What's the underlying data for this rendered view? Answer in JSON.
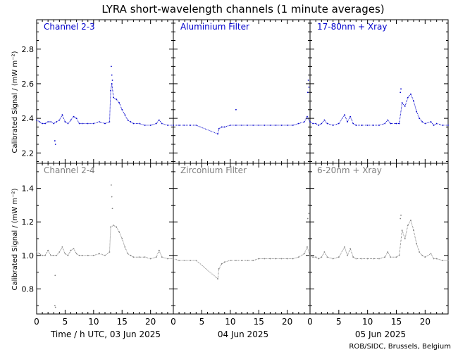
{
  "title": "LYRA short-wavelength channels (1 minute averages)",
  "ylabel": "Calibrated Signal / (mW m⁻²)",
  "xlabels": [
    "Time / h UTC, 03 Jun 2025",
    "04 Jun 2025",
    "05 Jun 2025"
  ],
  "credit": "ROB/SIDC, Brussels, Belgium",
  "colors": {
    "top": "#0000cc",
    "bottom": "#808080",
    "axis": "#000000"
  },
  "chart_data": [
    {
      "type": "scatter",
      "row": "top",
      "ylim": [
        2.14,
        2.97
      ],
      "yticks": [
        2.2,
        2.4,
        2.6,
        2.8
      ],
      "yminor": [
        2.15,
        2.25,
        2.3,
        2.35,
        2.45,
        2.5,
        2.55,
        2.65,
        2.7,
        2.75,
        2.85,
        2.9,
        2.95
      ],
      "xlim": [
        0,
        24
      ],
      "xticks": [
        0,
        5,
        10,
        15,
        20
      ],
      "panel_labels": [
        "Channel 2-3",
        "Aluminium Filter",
        "17-80nm + Xray"
      ],
      "series": [
        {
          "day": 0,
          "points": [
            [
              0,
              2.39
            ],
            [
              0.5,
              2.38
            ],
            [
              1,
              2.37
            ],
            [
              1.5,
              2.37
            ],
            [
              2,
              2.38
            ],
            [
              2.5,
              2.38
            ],
            [
              3,
              2.37
            ],
            [
              3.5,
              2.38
            ],
            [
              4,
              2.39
            ],
            [
              4.5,
              2.42
            ],
            [
              5,
              2.38
            ],
            [
              5.5,
              2.37
            ],
            [
              6,
              2.39
            ],
            [
              6.5,
              2.41
            ],
            [
              7,
              2.4
            ],
            [
              7.5,
              2.37
            ],
            [
              8,
              2.37
            ],
            [
              9,
              2.37
            ],
            [
              10,
              2.37
            ],
            [
              11,
              2.38
            ],
            [
              12,
              2.37
            ],
            [
              12.8,
              2.38
            ],
            [
              13,
              2.56
            ],
            [
              13.2,
              2.6
            ],
            [
              13.5,
              2.52
            ],
            [
              14,
              2.51
            ],
            [
              14.5,
              2.49
            ],
            [
              15,
              2.45
            ],
            [
              15.5,
              2.42
            ],
            [
              16,
              2.39
            ],
            [
              16.5,
              2.38
            ],
            [
              17,
              2.37
            ],
            [
              18,
              2.37
            ],
            [
              19,
              2.36
            ],
            [
              20,
              2.36
            ],
            [
              21,
              2.37
            ],
            [
              21.5,
              2.39
            ],
            [
              22,
              2.37
            ],
            [
              23,
              2.36
            ],
            [
              24,
              2.36
            ]
          ],
          "spikes": [
            [
              3.2,
              2.27
            ],
            [
              3.3,
              2.25
            ],
            [
              13.1,
              2.7
            ],
            [
              13.2,
              2.65
            ],
            [
              13.3,
              2.62
            ]
          ]
        },
        {
          "day": 1,
          "points": [
            [
              0,
              2.36
            ],
            [
              1,
              2.36
            ],
            [
              2,
              2.36
            ],
            [
              3,
              2.36
            ],
            [
              4,
              2.36
            ],
            [
              7.8,
              2.31
            ],
            [
              8,
              2.34
            ],
            [
              8.5,
              2.35
            ],
            [
              9,
              2.35
            ],
            [
              10,
              2.36
            ],
            [
              11,
              2.36
            ],
            [
              12,
              2.36
            ],
            [
              13,
              2.36
            ],
            [
              14,
              2.36
            ],
            [
              15,
              2.36
            ],
            [
              16,
              2.36
            ],
            [
              17,
              2.36
            ],
            [
              18,
              2.36
            ],
            [
              19,
              2.36
            ],
            [
              20,
              2.36
            ],
            [
              21,
              2.36
            ],
            [
              22,
              2.37
            ],
            [
              23,
              2.38
            ],
            [
              23.5,
              2.41
            ],
            [
              24,
              2.38
            ]
          ],
          "spikes": [
            [
              11,
              2.45
            ],
            [
              23.6,
              2.55
            ],
            [
              23.7,
              2.62
            ],
            [
              23.8,
              2.58
            ]
          ]
        },
        {
          "day": 2,
          "points": [
            [
              0,
              2.38
            ],
            [
              0.5,
              2.37
            ],
            [
              1,
              2.37
            ],
            [
              1.5,
              2.36
            ],
            [
              2,
              2.37
            ],
            [
              2.5,
              2.39
            ],
            [
              3,
              2.37
            ],
            [
              4,
              2.36
            ],
            [
              5,
              2.37
            ],
            [
              6,
              2.42
            ],
            [
              6.5,
              2.38
            ],
            [
              7,
              2.41
            ],
            [
              7.5,
              2.37
            ],
            [
              8,
              2.36
            ],
            [
              9,
              2.36
            ],
            [
              10,
              2.36
            ],
            [
              11,
              2.36
            ],
            [
              12,
              2.36
            ],
            [
              13,
              2.37
            ],
            [
              13.5,
              2.39
            ],
            [
              14,
              2.37
            ],
            [
              15,
              2.37
            ],
            [
              15.5,
              2.37
            ],
            [
              16,
              2.49
            ],
            [
              16.5,
              2.47
            ],
            [
              17,
              2.52
            ],
            [
              17.5,
              2.54
            ],
            [
              18,
              2.5
            ],
            [
              18.5,
              2.44
            ],
            [
              19,
              2.4
            ],
            [
              19.5,
              2.38
            ],
            [
              20,
              2.37
            ],
            [
              21,
              2.38
            ],
            [
              21.5,
              2.36
            ],
            [
              22,
              2.37
            ],
            [
              23,
              2.36
            ],
            [
              24,
              2.36
            ]
          ],
          "spikes": [
            [
              15.7,
              2.55
            ],
            [
              15.8,
              2.57
            ]
          ]
        }
      ]
    },
    {
      "type": "scatter",
      "row": "bottom",
      "ylim": [
        0.65,
        1.55
      ],
      "yticks": [
        0.8,
        1.0,
        1.2,
        1.4
      ],
      "yminor": [
        0.7,
        0.9,
        1.1,
        1.3,
        1.5
      ],
      "xlim": [
        0,
        24
      ],
      "xticks": [
        0,
        5,
        10,
        15,
        20
      ],
      "panel_labels": [
        "Channel 2-4",
        "Zirconium Filter",
        "6-20nm + Xray"
      ],
      "series": [
        {
          "day": 0,
          "points": [
            [
              0,
              1.02
            ],
            [
              0.5,
              1.01
            ],
            [
              1,
              1.0
            ],
            [
              1.5,
              1.0
            ],
            [
              2,
              1.03
            ],
            [
              2.5,
              1.0
            ],
            [
              3,
              1.0
            ],
            [
              3.5,
              1.0
            ],
            [
              4,
              1.02
            ],
            [
              4.5,
              1.05
            ],
            [
              5,
              1.01
            ],
            [
              5.5,
              1.0
            ],
            [
              6,
              1.03
            ],
            [
              6.5,
              1.04
            ],
            [
              7,
              1.01
            ],
            [
              7.5,
              1.0
            ],
            [
              8,
              1.0
            ],
            [
              9,
              1.0
            ],
            [
              10,
              1.0
            ],
            [
              11,
              1.01
            ],
            [
              12,
              1.0
            ],
            [
              12.8,
              1.02
            ],
            [
              13,
              1.17
            ],
            [
              13.5,
              1.18
            ],
            [
              14,
              1.17
            ],
            [
              14.5,
              1.14
            ],
            [
              15,
              1.1
            ],
            [
              15.5,
              1.05
            ],
            [
              16,
              1.01
            ],
            [
              16.5,
              1.0
            ],
            [
              17,
              0.99
            ],
            [
              18,
              0.99
            ],
            [
              19,
              0.99
            ],
            [
              20,
              0.98
            ],
            [
              21,
              0.99
            ],
            [
              21.5,
              1.03
            ],
            [
              22,
              0.99
            ],
            [
              23,
              0.98
            ],
            [
              24,
              0.98
            ]
          ],
          "spikes": [
            [
              3.2,
              0.7
            ],
            [
              3.3,
              0.69
            ],
            [
              3.25,
              0.88
            ],
            [
              13.1,
              1.42
            ],
            [
              13.2,
              1.35
            ],
            [
              13.3,
              1.28
            ]
          ]
        },
        {
          "day": 1,
          "points": [
            [
              0,
              0.98
            ],
            [
              1,
              0.97
            ],
            [
              2,
              0.97
            ],
            [
              3,
              0.97
            ],
            [
              4,
              0.97
            ],
            [
              7.8,
              0.86
            ],
            [
              8,
              0.92
            ],
            [
              8.5,
              0.95
            ],
            [
              9,
              0.96
            ],
            [
              10,
              0.97
            ],
            [
              11,
              0.97
            ],
            [
              12,
              0.97
            ],
            [
              13,
              0.97
            ],
            [
              14,
              0.97
            ],
            [
              15,
              0.98
            ],
            [
              16,
              0.98
            ],
            [
              17,
              0.98
            ],
            [
              18,
              0.98
            ],
            [
              19,
              0.98
            ],
            [
              20,
              0.98
            ],
            [
              21,
              0.98
            ],
            [
              22,
              0.99
            ],
            [
              23,
              1.01
            ],
            [
              23.5,
              1.05
            ],
            [
              24,
              1.0
            ]
          ],
          "spikes": [
            [
              23.6,
              1.22
            ],
            [
              23.7,
              1.3
            ],
            [
              23.8,
              1.25
            ]
          ]
        },
        {
          "day": 2,
          "points": [
            [
              0,
              1.0
            ],
            [
              0.5,
              0.99
            ],
            [
              1,
              0.99
            ],
            [
              1.5,
              0.98
            ],
            [
              2,
              0.99
            ],
            [
              2.5,
              1.02
            ],
            [
              3,
              0.99
            ],
            [
              4,
              0.98
            ],
            [
              5,
              0.99
            ],
            [
              6,
              1.05
            ],
            [
              6.5,
              1.0
            ],
            [
              7,
              1.04
            ],
            [
              7.5,
              0.99
            ],
            [
              8,
              0.98
            ],
            [
              9,
              0.98
            ],
            [
              10,
              0.98
            ],
            [
              11,
              0.98
            ],
            [
              12,
              0.98
            ],
            [
              13,
              0.99
            ],
            [
              13.5,
              1.02
            ],
            [
              14,
              0.99
            ],
            [
              15,
              0.99
            ],
            [
              15.5,
              1.0
            ],
            [
              16,
              1.15
            ],
            [
              16.5,
              1.1
            ],
            [
              17,
              1.18
            ],
            [
              17.5,
              1.21
            ],
            [
              18,
              1.15
            ],
            [
              18.5,
              1.07
            ],
            [
              19,
              1.02
            ],
            [
              19.5,
              1.0
            ],
            [
              20,
              0.99
            ],
            [
              21,
              1.01
            ],
            [
              21.5,
              0.98
            ],
            [
              22,
              0.98
            ],
            [
              23,
              0.97
            ],
            [
              24,
              0.97
            ]
          ],
          "spikes": [
            [
              15.7,
              1.22
            ],
            [
              15.8,
              1.24
            ]
          ]
        }
      ]
    }
  ]
}
